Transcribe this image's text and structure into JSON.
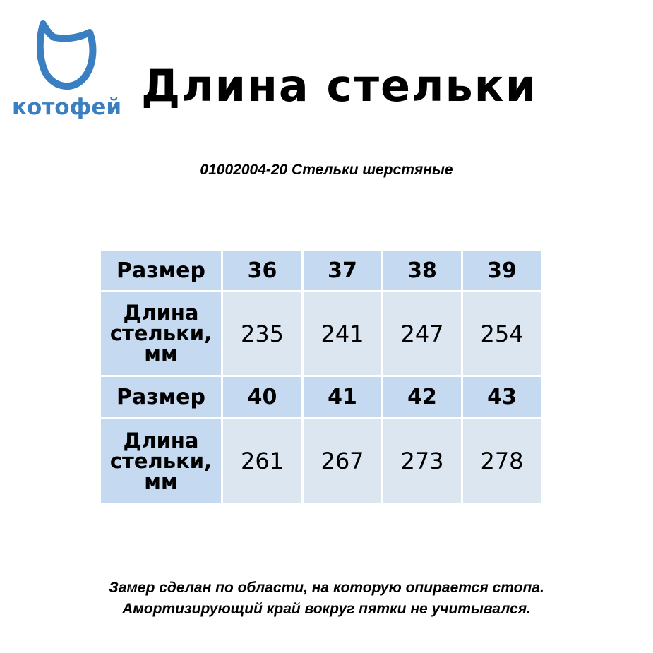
{
  "brand": {
    "name": "котофей",
    "color": "#3a7fc1"
  },
  "title": "Длина стельки",
  "subtitle": "01002004-20 Стельки шерстяные",
  "table": {
    "colors": {
      "header": "#c5d9f1",
      "data": "#dce6f1"
    },
    "blocks": [
      {
        "size_label": "Размер",
        "sizes": [
          "36",
          "37",
          "38",
          "39"
        ],
        "length_label": [
          "Длина",
          "стельки,",
          "мм"
        ],
        "lengths": [
          "235",
          "241",
          "247",
          "254"
        ]
      },
      {
        "size_label": "Размер",
        "sizes": [
          "40",
          "41",
          "42",
          "43"
        ],
        "length_label": [
          "Длина",
          "стельки,",
          "мм"
        ],
        "lengths": [
          "261",
          "267",
          "273",
          "278"
        ]
      }
    ]
  },
  "note": [
    "Замер сделан по области, на которую опирается стопа.",
    "Амортизирующий край вокруг пятки не учитывался."
  ]
}
